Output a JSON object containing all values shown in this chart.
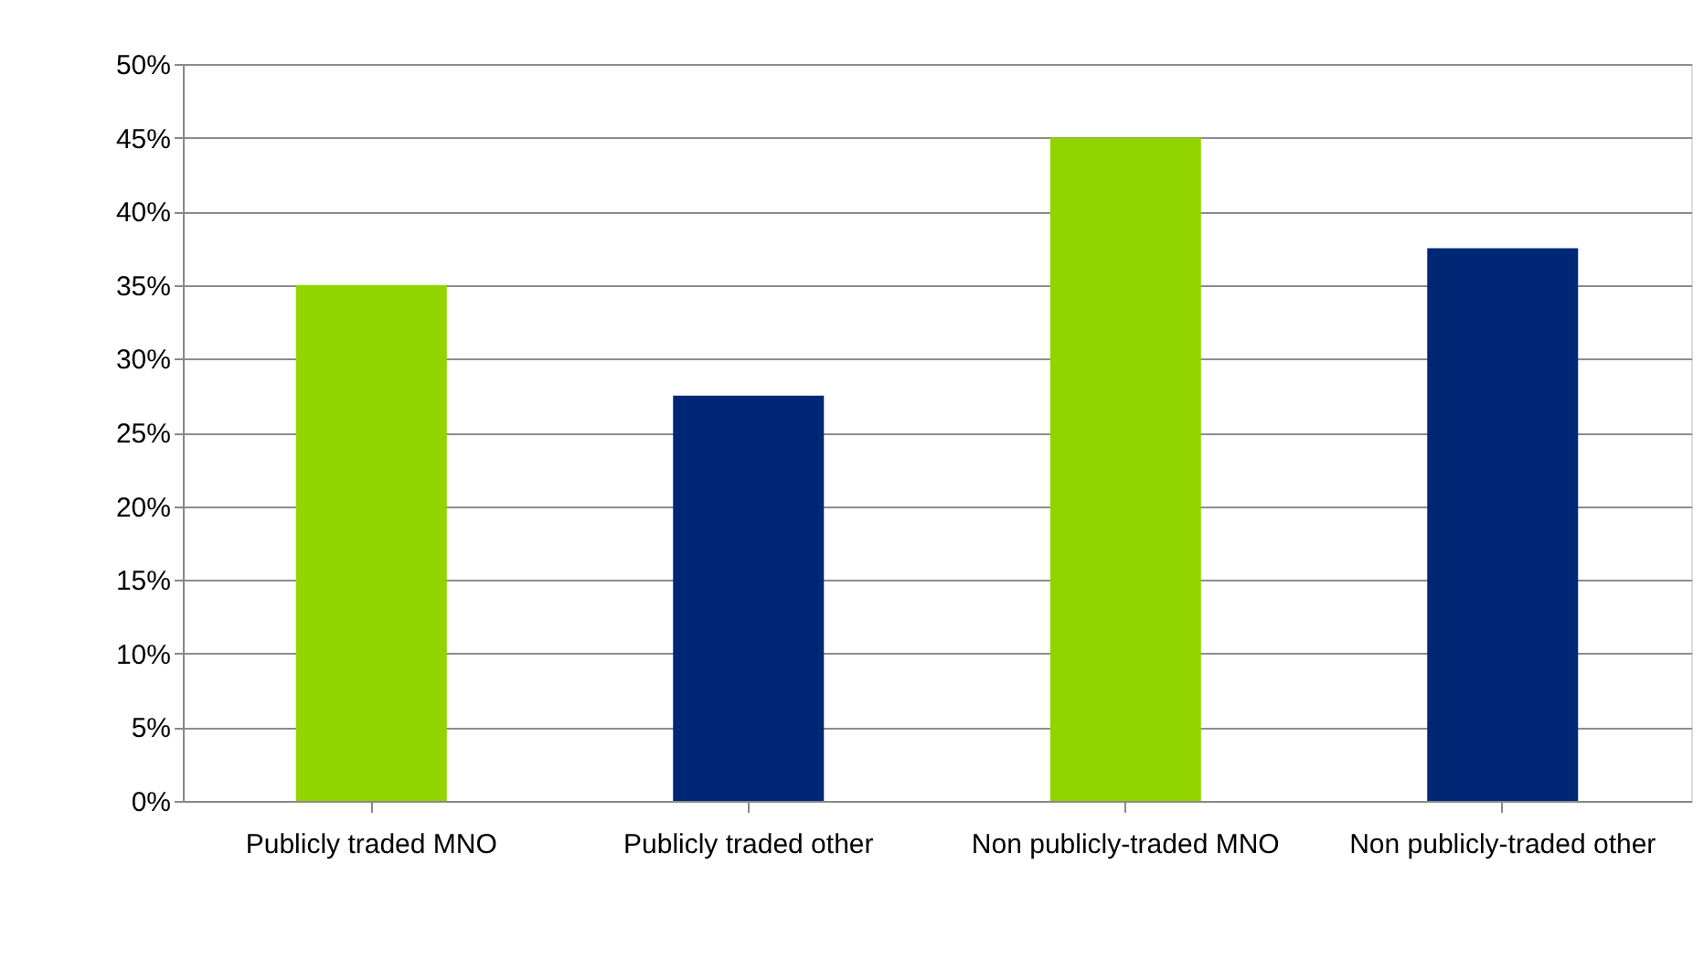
{
  "chart_data": {
    "type": "bar",
    "categories": [
      "Publicly traded MNO",
      "Publicly traded other",
      "Non publicly-traded MNO",
      "Non publicly-traded other"
    ],
    "values": [
      35,
      27.5,
      45,
      37.5
    ],
    "colors": [
      "#92d400",
      "#002776",
      "#92d400",
      "#002776"
    ],
    "ylim": [
      0,
      50
    ],
    "yticks": [
      {
        "value": 0,
        "label": "0%"
      },
      {
        "value": 5,
        "label": "5%"
      },
      {
        "value": 10,
        "label": "10%"
      },
      {
        "value": 15,
        "label": "15%"
      },
      {
        "value": 20,
        "label": "20%"
      },
      {
        "value": 25,
        "label": "25%"
      },
      {
        "value": 30,
        "label": "30%"
      },
      {
        "value": 35,
        "label": "35%"
      },
      {
        "value": 40,
        "label": "40%"
      },
      {
        "value": 45,
        "label": "45%"
      },
      {
        "value": 50,
        "label": "50%"
      }
    ],
    "grid": "y"
  }
}
